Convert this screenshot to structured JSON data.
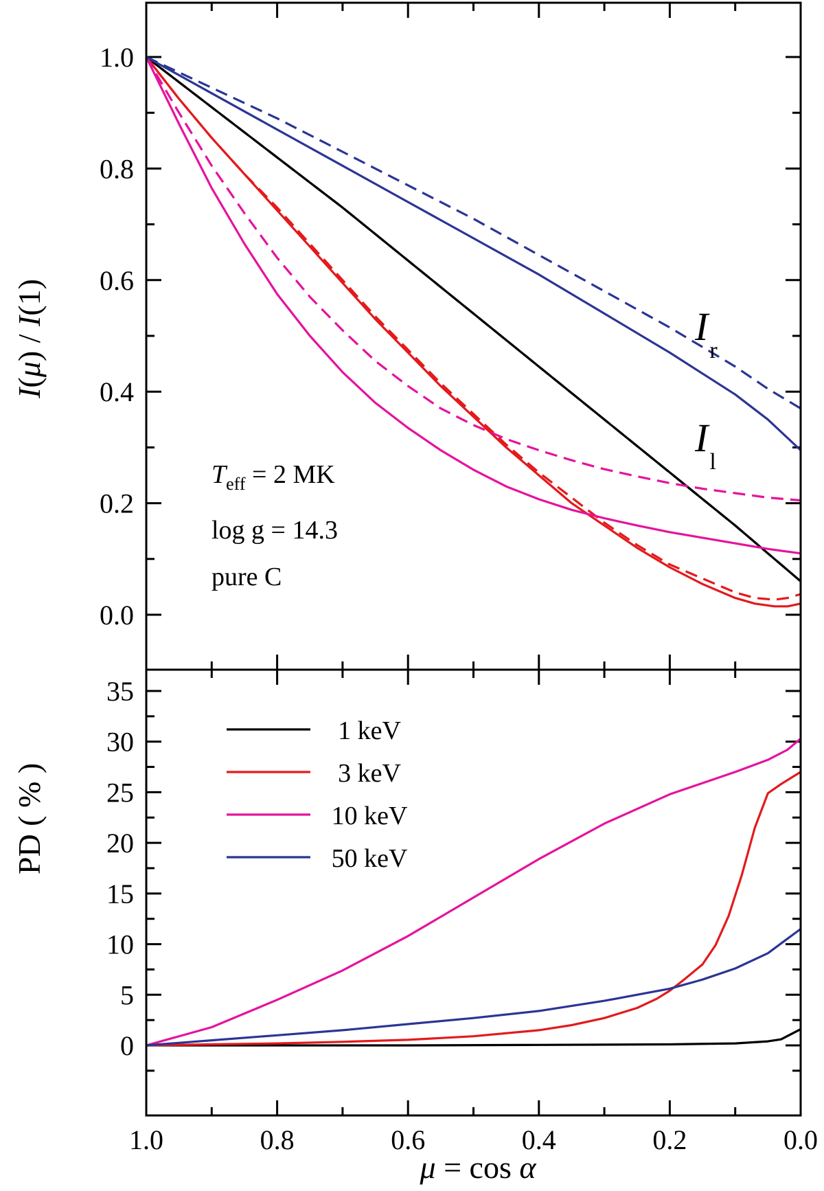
{
  "chart_data": [
    {
      "type": "line",
      "panel": "top",
      "ylabel": {
        "pre": "I",
        "mid1": "(",
        "mu": "μ",
        "mid2": ") / ",
        "post": "I",
        "tail": "(1)"
      },
      "xlim": [
        1.0,
        0.0
      ],
      "ylim": [
        -0.1,
        1.1
      ],
      "yticks": [
        0.0,
        0.2,
        0.4,
        0.6,
        0.8,
        1.0
      ],
      "ytick_labels": [
        "0.0",
        "0.2",
        "0.4",
        "0.6",
        "0.8",
        "1.0"
      ],
      "annotation": {
        "teff_symbol": "T",
        "teff_sub": "eff",
        "teff_value": " = 2 MK",
        "line2": "log g = 14.3",
        "line3": "pure C"
      },
      "curve_labels": [
        {
          "main": "I",
          "sub": "r",
          "x": 0.16,
          "y": 0.5
        },
        {
          "main": "I",
          "sub": "l",
          "x": 0.16,
          "y": 0.3
        }
      ],
      "series": [
        {
          "name": "1 keV",
          "component": "l",
          "color": "#000000",
          "dash": false,
          "x": [
            1.0,
            0.9,
            0.8,
            0.7,
            0.6,
            0.5,
            0.4,
            0.3,
            0.2,
            0.1,
            0.05,
            0.02,
            0.0
          ],
          "y": [
            1.0,
            0.91,
            0.82,
            0.73,
            0.635,
            0.54,
            0.445,
            0.35,
            0.255,
            0.16,
            0.11,
            0.08,
            0.06
          ]
        },
        {
          "name": "1 keV",
          "component": "r",
          "color": "#000000",
          "dash": true,
          "x": [
            1.0,
            0.9,
            0.8,
            0.7,
            0.6,
            0.5,
            0.4,
            0.3,
            0.2,
            0.1,
            0.05,
            0.02,
            0.0
          ],
          "y": [
            1.0,
            0.91,
            0.82,
            0.73,
            0.635,
            0.54,
            0.445,
            0.35,
            0.255,
            0.16,
            0.11,
            0.08,
            0.06
          ]
        },
        {
          "name": "3 keV",
          "component": "l",
          "color": "#e31a1c",
          "dash": false,
          "x": [
            1.0,
            0.95,
            0.9,
            0.85,
            0.8,
            0.75,
            0.7,
            0.65,
            0.6,
            0.55,
            0.5,
            0.45,
            0.4,
            0.35,
            0.3,
            0.25,
            0.2,
            0.15,
            0.1,
            0.07,
            0.04,
            0.02,
            0.0
          ],
          "y": [
            1.0,
            0.925,
            0.855,
            0.79,
            0.725,
            0.66,
            0.595,
            0.53,
            0.47,
            0.41,
            0.355,
            0.3,
            0.25,
            0.2,
            0.16,
            0.12,
            0.085,
            0.055,
            0.03,
            0.02,
            0.015,
            0.015,
            0.02
          ]
        },
        {
          "name": "3 keV",
          "component": "r",
          "color": "#e31a1c",
          "dash": true,
          "x": [
            1.0,
            0.95,
            0.9,
            0.85,
            0.8,
            0.75,
            0.7,
            0.65,
            0.6,
            0.55,
            0.5,
            0.45,
            0.4,
            0.35,
            0.3,
            0.25,
            0.2,
            0.15,
            0.1,
            0.07,
            0.04,
            0.02,
            0.0
          ],
          "y": [
            1.0,
            0.925,
            0.855,
            0.79,
            0.73,
            0.665,
            0.6,
            0.535,
            0.475,
            0.415,
            0.36,
            0.305,
            0.255,
            0.21,
            0.165,
            0.125,
            0.09,
            0.065,
            0.04,
            0.03,
            0.027,
            0.03,
            0.037
          ]
        },
        {
          "name": "10 keV",
          "component": "l",
          "color": "#e5139d",
          "dash": false,
          "x": [
            1.0,
            0.95,
            0.9,
            0.85,
            0.8,
            0.75,
            0.7,
            0.65,
            0.6,
            0.55,
            0.5,
            0.45,
            0.4,
            0.35,
            0.3,
            0.25,
            0.2,
            0.15,
            0.1,
            0.05,
            0.0
          ],
          "y": [
            1.0,
            0.88,
            0.765,
            0.665,
            0.575,
            0.5,
            0.435,
            0.38,
            0.335,
            0.295,
            0.26,
            0.23,
            0.207,
            0.188,
            0.173,
            0.16,
            0.148,
            0.138,
            0.128,
            0.118,
            0.11
          ]
        },
        {
          "name": "10 keV",
          "component": "r",
          "color": "#e5139d",
          "dash": true,
          "x": [
            1.0,
            0.95,
            0.9,
            0.85,
            0.8,
            0.75,
            0.7,
            0.65,
            0.6,
            0.55,
            0.5,
            0.45,
            0.4,
            0.35,
            0.3,
            0.25,
            0.2,
            0.15,
            0.1,
            0.05,
            0.0
          ],
          "y": [
            1.0,
            0.9,
            0.805,
            0.72,
            0.64,
            0.57,
            0.51,
            0.455,
            0.41,
            0.37,
            0.34,
            0.315,
            0.295,
            0.277,
            0.261,
            0.248,
            0.236,
            0.226,
            0.218,
            0.21,
            0.205
          ]
        },
        {
          "name": "50 keV",
          "component": "l",
          "color": "#2b3595",
          "dash": false,
          "x": [
            1.0,
            0.9,
            0.8,
            0.7,
            0.6,
            0.5,
            0.4,
            0.3,
            0.2,
            0.1,
            0.05,
            0.0
          ],
          "y": [
            1.0,
            0.935,
            0.87,
            0.805,
            0.74,
            0.675,
            0.61,
            0.54,
            0.47,
            0.395,
            0.35,
            0.295
          ]
        },
        {
          "name": "50 keV",
          "component": "r",
          "color": "#2b3595",
          "dash": true,
          "x": [
            1.0,
            0.9,
            0.8,
            0.7,
            0.6,
            0.5,
            0.4,
            0.3,
            0.2,
            0.1,
            0.05,
            0.0
          ],
          "y": [
            1.0,
            0.945,
            0.89,
            0.83,
            0.77,
            0.71,
            0.645,
            0.58,
            0.515,
            0.445,
            0.405,
            0.37
          ]
        }
      ]
    },
    {
      "type": "line",
      "panel": "bottom",
      "ylabel": "PD ( % )",
      "xlabel": {
        "mu": "μ",
        "rest": " = cos ",
        "alpha": "α"
      },
      "xlim": [
        1.0,
        0.0
      ],
      "ylim": [
        -3,
        37
      ],
      "yticks": [
        0,
        5,
        10,
        15,
        20,
        25,
        30,
        35
      ],
      "ytick_labels": [
        "0",
        "5",
        "10",
        "15",
        "20",
        "25",
        "30",
        "35"
      ],
      "xticks": [
        1.0,
        0.8,
        0.6,
        0.4,
        0.2,
        0.0
      ],
      "xtick_labels": [
        "1.0",
        "0.8",
        "0.6",
        "0.4",
        "0.2",
        "0.0"
      ],
      "legend": {
        "placement": "upper-left",
        "entries": [
          {
            "label": "1 keV",
            "color": "#000000"
          },
          {
            "label": "3 keV",
            "color": "#e31a1c"
          },
          {
            "label": "10 keV",
            "color": "#e5139d"
          },
          {
            "label": "50 keV",
            "color": "#2b3595"
          }
        ]
      },
      "series": [
        {
          "name": "1 keV",
          "color": "#000000",
          "x": [
            1.0,
            0.8,
            0.6,
            0.4,
            0.2,
            0.1,
            0.05,
            0.03,
            0.0
          ],
          "y": [
            0.0,
            0.0,
            0.0,
            0.05,
            0.1,
            0.2,
            0.4,
            0.6,
            1.6
          ]
        },
        {
          "name": "3 keV",
          "color": "#e31a1c",
          "x": [
            1.0,
            0.9,
            0.8,
            0.7,
            0.6,
            0.5,
            0.4,
            0.35,
            0.3,
            0.25,
            0.22,
            0.2,
            0.18,
            0.15,
            0.13,
            0.11,
            0.09,
            0.07,
            0.05,
            0.03,
            0.0
          ],
          "y": [
            0.0,
            0.1,
            0.2,
            0.35,
            0.55,
            0.9,
            1.5,
            2.0,
            2.7,
            3.7,
            4.6,
            5.4,
            6.4,
            8.0,
            9.9,
            12.8,
            16.8,
            21.5,
            24.9,
            25.8,
            27.0
          ]
        },
        {
          "name": "10 keV",
          "color": "#e5139d",
          "x": [
            1.0,
            0.9,
            0.8,
            0.7,
            0.6,
            0.5,
            0.4,
            0.3,
            0.2,
            0.1,
            0.05,
            0.02,
            0.0
          ],
          "y": [
            0.0,
            1.8,
            4.5,
            7.4,
            10.8,
            14.6,
            18.4,
            21.9,
            24.8,
            27.0,
            28.2,
            29.2,
            30.3
          ]
        },
        {
          "name": "50 keV",
          "color": "#2b3595",
          "x": [
            1.0,
            0.9,
            0.8,
            0.7,
            0.6,
            0.5,
            0.4,
            0.3,
            0.2,
            0.15,
            0.1,
            0.05,
            0.0
          ],
          "y": [
            0.0,
            0.5,
            1.0,
            1.5,
            2.1,
            2.7,
            3.4,
            4.4,
            5.6,
            6.5,
            7.6,
            9.1,
            11.5
          ]
        }
      ]
    }
  ]
}
